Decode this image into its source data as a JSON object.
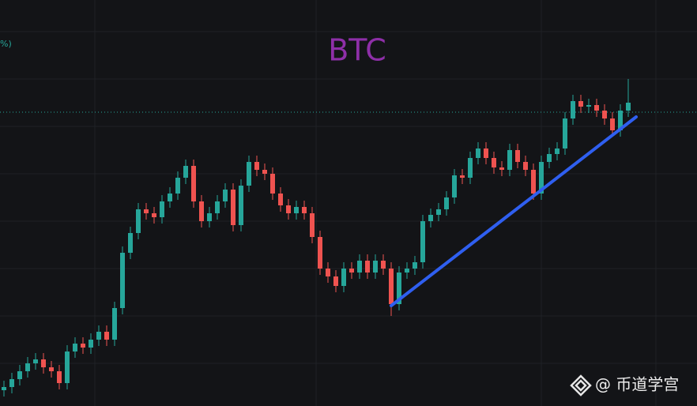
{
  "chart_data": {
    "type": "candlestick",
    "title": "BTC",
    "title_color": "#8e2fa8",
    "corner_text": "%)",
    "watermark": "@ 币道学宫",
    "ylim": [
      0,
      514
    ],
    "grid": true,
    "up_color": "#26a69a",
    "down_color": "#ef5350",
    "open": [
      20,
      24,
      34,
      44,
      54,
      59,
      49,
      44,
      29,
      69,
      79,
      74,
      84,
      94,
      84,
      124,
      194,
      219,
      249,
      244,
      239,
      259,
      269,
      289,
      304,
      259,
      234,
      244,
      259,
      274,
      229,
      279,
      309,
      299,
      294,
      269,
      254,
      244,
      252,
      244,
      214,
      174,
      164,
      152,
      174,
      169,
      184,
      169,
      184,
      174,
      129,
      169,
      174,
      182,
      234,
      242,
      249,
      264,
      292,
      289,
      314,
      326,
      314,
      302,
      299,
      324,
      309,
      299,
      269,
      309,
      319,
      326,
      364,
      386,
      379,
      381,
      374,
      364,
      349,
      374
    ],
    "high": [
      32,
      42,
      52,
      62,
      67,
      67,
      57,
      52,
      77,
      87,
      87,
      92,
      102,
      102,
      132,
      202,
      227,
      257,
      257,
      252,
      267,
      277,
      297,
      312,
      312,
      267,
      252,
      267,
      282,
      282,
      287,
      317,
      317,
      307,
      302,
      277,
      262,
      260,
      260,
      252,
      222,
      182,
      172,
      182,
      182,
      192,
      192,
      192,
      192,
      182,
      177,
      182,
      190,
      242,
      250,
      257,
      272,
      300,
      300,
      322,
      334,
      334,
      322,
      310,
      332,
      332,
      317,
      307,
      317,
      327,
      334,
      372,
      394,
      394,
      389,
      389,
      382,
      372,
      382,
      414
    ],
    "low": [
      12,
      16,
      26,
      36,
      46,
      41,
      36,
      21,
      21,
      61,
      66,
      66,
      76,
      76,
      76,
      116,
      186,
      211,
      236,
      231,
      231,
      251,
      261,
      281,
      251,
      226,
      226,
      236,
      251,
      221,
      221,
      271,
      291,
      286,
      261,
      246,
      236,
      236,
      236,
      206,
      166,
      156,
      144,
      144,
      161,
      161,
      161,
      161,
      166,
      114,
      121,
      161,
      166,
      174,
      226,
      234,
      241,
      256,
      281,
      281,
      306,
      306,
      294,
      291,
      291,
      301,
      291,
      261,
      261,
      301,
      311,
      318,
      356,
      371,
      371,
      366,
      356,
      341,
      341,
      366
    ],
    "close": [
      24,
      34,
      44,
      54,
      59,
      49,
      44,
      29,
      69,
      79,
      74,
      84,
      94,
      84,
      124,
      194,
      219,
      249,
      244,
      239,
      259,
      269,
      289,
      304,
      259,
      234,
      244,
      259,
      274,
      229,
      279,
      309,
      299,
      294,
      269,
      254,
      244,
      252,
      244,
      214,
      174,
      164,
      152,
      174,
      169,
      184,
      169,
      184,
      174,
      129,
      169,
      174,
      182,
      234,
      242,
      249,
      264,
      292,
      289,
      314,
      326,
      314,
      302,
      299,
      324,
      309,
      299,
      269,
      309,
      319,
      326,
      364,
      386,
      379,
      381,
      374,
      364,
      349,
      374,
      384
    ],
    "price_line": 372,
    "price_line_color": "#26a69a",
    "trendline": {
      "x": [
        49,
        80
      ],
      "y": [
        127,
        366
      ],
      "color": "#2f5ff0"
    }
  }
}
